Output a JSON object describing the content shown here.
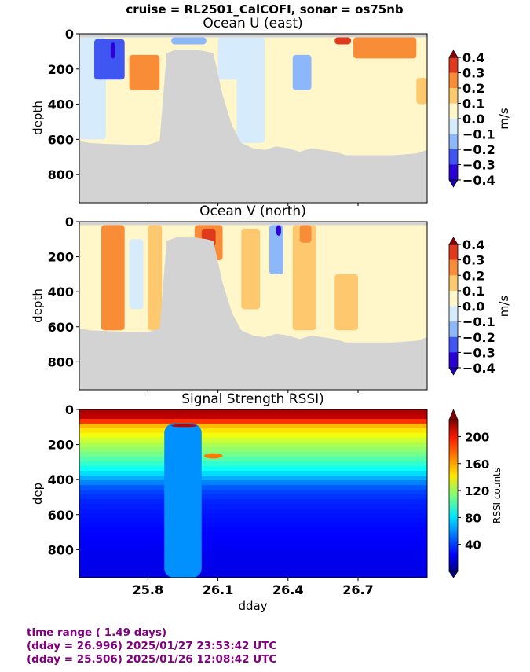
{
  "suptitle": "cruise = RL2501_CalCOFI,  sonar = os75nb",
  "footer": {
    "line1": "time range ( 1.49 days)",
    "line2": "(dday = 26.996) 2025/01/27 23:53:42 UTC",
    "line3": "(dday = 25.506) 2025/01/26 12:08:42 UTC"
  },
  "chart_data": [
    {
      "type": "heatmap",
      "title": "Ocean U (east)",
      "ylabel": "depth",
      "xlabel": "",
      "xlim": [
        25.506,
        26.996
      ],
      "ylim": [
        960,
        0
      ],
      "yticks": [
        "0",
        "200",
        "400",
        "600",
        "800"
      ],
      "colorbar": {
        "label": "m/s",
        "ticks": [
          "0.4",
          "0.3",
          "0.2",
          "0.1",
          "0.0",
          "−0.1",
          "−0.2",
          "−0.3",
          "−0.4"
        ],
        "range": [
          -0.4,
          0.4
        ]
      },
      "bottom_depth": [
        [
          25.506,
          610
        ],
        [
          25.55,
          620
        ],
        [
          25.62,
          625
        ],
        [
          25.72,
          630
        ],
        [
          25.76,
          630
        ],
        [
          25.8,
          630
        ],
        [
          25.85,
          610
        ],
        [
          25.88,
          110
        ],
        [
          25.92,
          90
        ],
        [
          26.0,
          90
        ],
        [
          26.05,
          100
        ],
        [
          26.08,
          110
        ],
        [
          26.12,
          350
        ],
        [
          26.16,
          520
        ],
        [
          26.2,
          620
        ],
        [
          26.25,
          650
        ],
        [
          26.3,
          660
        ],
        [
          26.35,
          640
        ],
        [
          26.4,
          650
        ],
        [
          26.45,
          670
        ],
        [
          26.5,
          650
        ],
        [
          26.6,
          670
        ],
        [
          26.65,
          690
        ],
        [
          26.75,
          690
        ],
        [
          26.85,
          690
        ],
        [
          26.95,
          680
        ],
        [
          26.996,
          660
        ]
      ],
      "features": [
        {
          "dday": [
            25.506,
            25.62
          ],
          "depth": [
            20,
            600
          ],
          "value": -0.1
        },
        {
          "dday": [
            25.57,
            25.7
          ],
          "depth": [
            30,
            260
          ],
          "value": -0.3
        },
        {
          "dday": [
            25.64,
            25.66
          ],
          "depth": [
            50,
            140
          ],
          "value": -0.4
        },
        {
          "dday": [
            25.72,
            25.85
          ],
          "depth": [
            120,
            320
          ],
          "value": 0.2
        },
        {
          "dday": [
            25.9,
            26.05
          ],
          "depth": [
            20,
            60
          ],
          "value": -0.2
        },
        {
          "dday": [
            26.1,
            26.2
          ],
          "depth": [
            20,
            260
          ],
          "value": -0.1
        },
        {
          "dday": [
            26.18,
            26.3
          ],
          "depth": [
            20,
            620
          ],
          "value": -0.1
        },
        {
          "dday": [
            26.35,
            26.5
          ],
          "depth": [
            20,
            500
          ],
          "value": 0.0
        },
        {
          "dday": [
            26.42,
            26.5
          ],
          "depth": [
            120,
            320
          ],
          "value": -0.15
        },
        {
          "dday": [
            26.6,
            26.67
          ],
          "depth": [
            20,
            60
          ],
          "value": 0.35
        },
        {
          "dday": [
            26.68,
            26.95
          ],
          "depth": [
            20,
            140
          ],
          "value": 0.2
        },
        {
          "dday": [
            26.75,
            26.82
          ],
          "depth": [
            40,
            120
          ],
          "value": 0.3
        },
        {
          "dday": [
            26.95,
            26.996
          ],
          "depth": [
            250,
            400
          ],
          "value": 0.15
        }
      ]
    },
    {
      "type": "heatmap",
      "title": "Ocean V (north)",
      "ylabel": "depth",
      "xlabel": "",
      "xlim": [
        25.506,
        26.996
      ],
      "ylim": [
        960,
        0
      ],
      "yticks": [
        "0",
        "200",
        "400",
        "600",
        "800"
      ],
      "colorbar": {
        "label": "m/s",
        "ticks": [
          "0.4",
          "0.3",
          "0.2",
          "0.1",
          "0.0",
          "−0.1",
          "−0.2",
          "−0.3",
          "−0.4"
        ],
        "range": [
          -0.4,
          0.4
        ]
      },
      "bottom_depth": [
        [
          25.506,
          610
        ],
        [
          25.55,
          620
        ],
        [
          25.62,
          625
        ],
        [
          25.72,
          630
        ],
        [
          25.76,
          630
        ],
        [
          25.8,
          630
        ],
        [
          25.85,
          610
        ],
        [
          25.88,
          110
        ],
        [
          25.92,
          90
        ],
        [
          26.0,
          90
        ],
        [
          26.05,
          100
        ],
        [
          26.08,
          110
        ],
        [
          26.12,
          350
        ],
        [
          26.16,
          520
        ],
        [
          26.2,
          620
        ],
        [
          26.25,
          650
        ],
        [
          26.3,
          660
        ],
        [
          26.35,
          640
        ],
        [
          26.4,
          650
        ],
        [
          26.45,
          670
        ],
        [
          26.5,
          650
        ],
        [
          26.6,
          670
        ],
        [
          26.65,
          690
        ],
        [
          26.75,
          690
        ],
        [
          26.85,
          690
        ],
        [
          26.95,
          680
        ],
        [
          26.996,
          660
        ]
      ],
      "features": [
        {
          "dday": [
            25.6,
            25.7
          ],
          "depth": [
            20,
            620
          ],
          "value": 0.25
        },
        {
          "dday": [
            25.62,
            25.67
          ],
          "depth": [
            30,
            200
          ],
          "value": 0.3
        },
        {
          "dday": [
            25.72,
            25.78
          ],
          "depth": [
            100,
            500
          ],
          "value": -0.1
        },
        {
          "dday": [
            25.8,
            25.86
          ],
          "depth": [
            20,
            620
          ],
          "value": 0.15
        },
        {
          "dday": [
            26.0,
            26.12
          ],
          "depth": [
            20,
            220
          ],
          "value": 0.3
        },
        {
          "dday": [
            26.03,
            26.09
          ],
          "depth": [
            40,
            140
          ],
          "value": 0.38
        },
        {
          "dday": [
            26.2,
            26.28
          ],
          "depth": [
            40,
            500
          ],
          "value": 0.15
        },
        {
          "dday": [
            26.32,
            26.38
          ],
          "depth": [
            20,
            300
          ],
          "value": -0.2
        },
        {
          "dday": [
            26.35,
            26.37
          ],
          "depth": [
            20,
            80
          ],
          "value": -0.35
        },
        {
          "dday": [
            26.42,
            26.52
          ],
          "depth": [
            20,
            620
          ],
          "value": 0.15
        },
        {
          "dday": [
            26.45,
            26.5
          ],
          "depth": [
            20,
            120
          ],
          "value": 0.3
        },
        {
          "dday": [
            26.6,
            26.7
          ],
          "depth": [
            300,
            620
          ],
          "value": 0.15
        },
        {
          "dday": [
            26.8,
            26.996
          ],
          "depth": [
            100,
            600
          ],
          "value": 0.05
        }
      ]
    },
    {
      "type": "heatmap",
      "title": "Signal Strength RSSI)",
      "ylabel": "dep",
      "xlabel": "dday",
      "xlim": [
        25.506,
        26.996
      ],
      "ylim": [
        960,
        0
      ],
      "xticks": [
        "25.8",
        "26.1",
        "26.4",
        "26.7"
      ],
      "xtick_values": [
        25.8,
        26.1,
        26.4,
        26.7
      ],
      "yticks": [
        "0",
        "200",
        "400",
        "600",
        "800"
      ],
      "colorbar": {
        "label": "RSSI counts",
        "ticks": [
          "200",
          "160",
          "120",
          "80",
          "40"
        ],
        "range": [
          0,
          225
        ]
      },
      "profile": [
        [
          20,
          215
        ],
        [
          45,
          200
        ],
        [
          70,
          160
        ],
        [
          110,
          145
        ],
        [
          160,
          130
        ],
        [
          220,
          115
        ],
        [
          280,
          100
        ],
        [
          330,
          85
        ],
        [
          380,
          65
        ],
        [
          440,
          45
        ],
        [
          520,
          35
        ],
        [
          650,
          30
        ],
        [
          800,
          25
        ],
        [
          960,
          22
        ]
      ],
      "features": [
        {
          "dday": [
            25.87,
            26.03
          ],
          "depth": [
            80,
            960
          ],
          "value": 60,
          "note": "arched echo (near-bottom reflection)"
        },
        {
          "dday": [
            25.9,
            26.01
          ],
          "depth": [
            85,
            100
          ],
          "value": 210
        },
        {
          "dday": [
            26.04,
            26.12
          ],
          "depth": [
            250,
            280
          ],
          "value": 170
        }
      ]
    }
  ]
}
